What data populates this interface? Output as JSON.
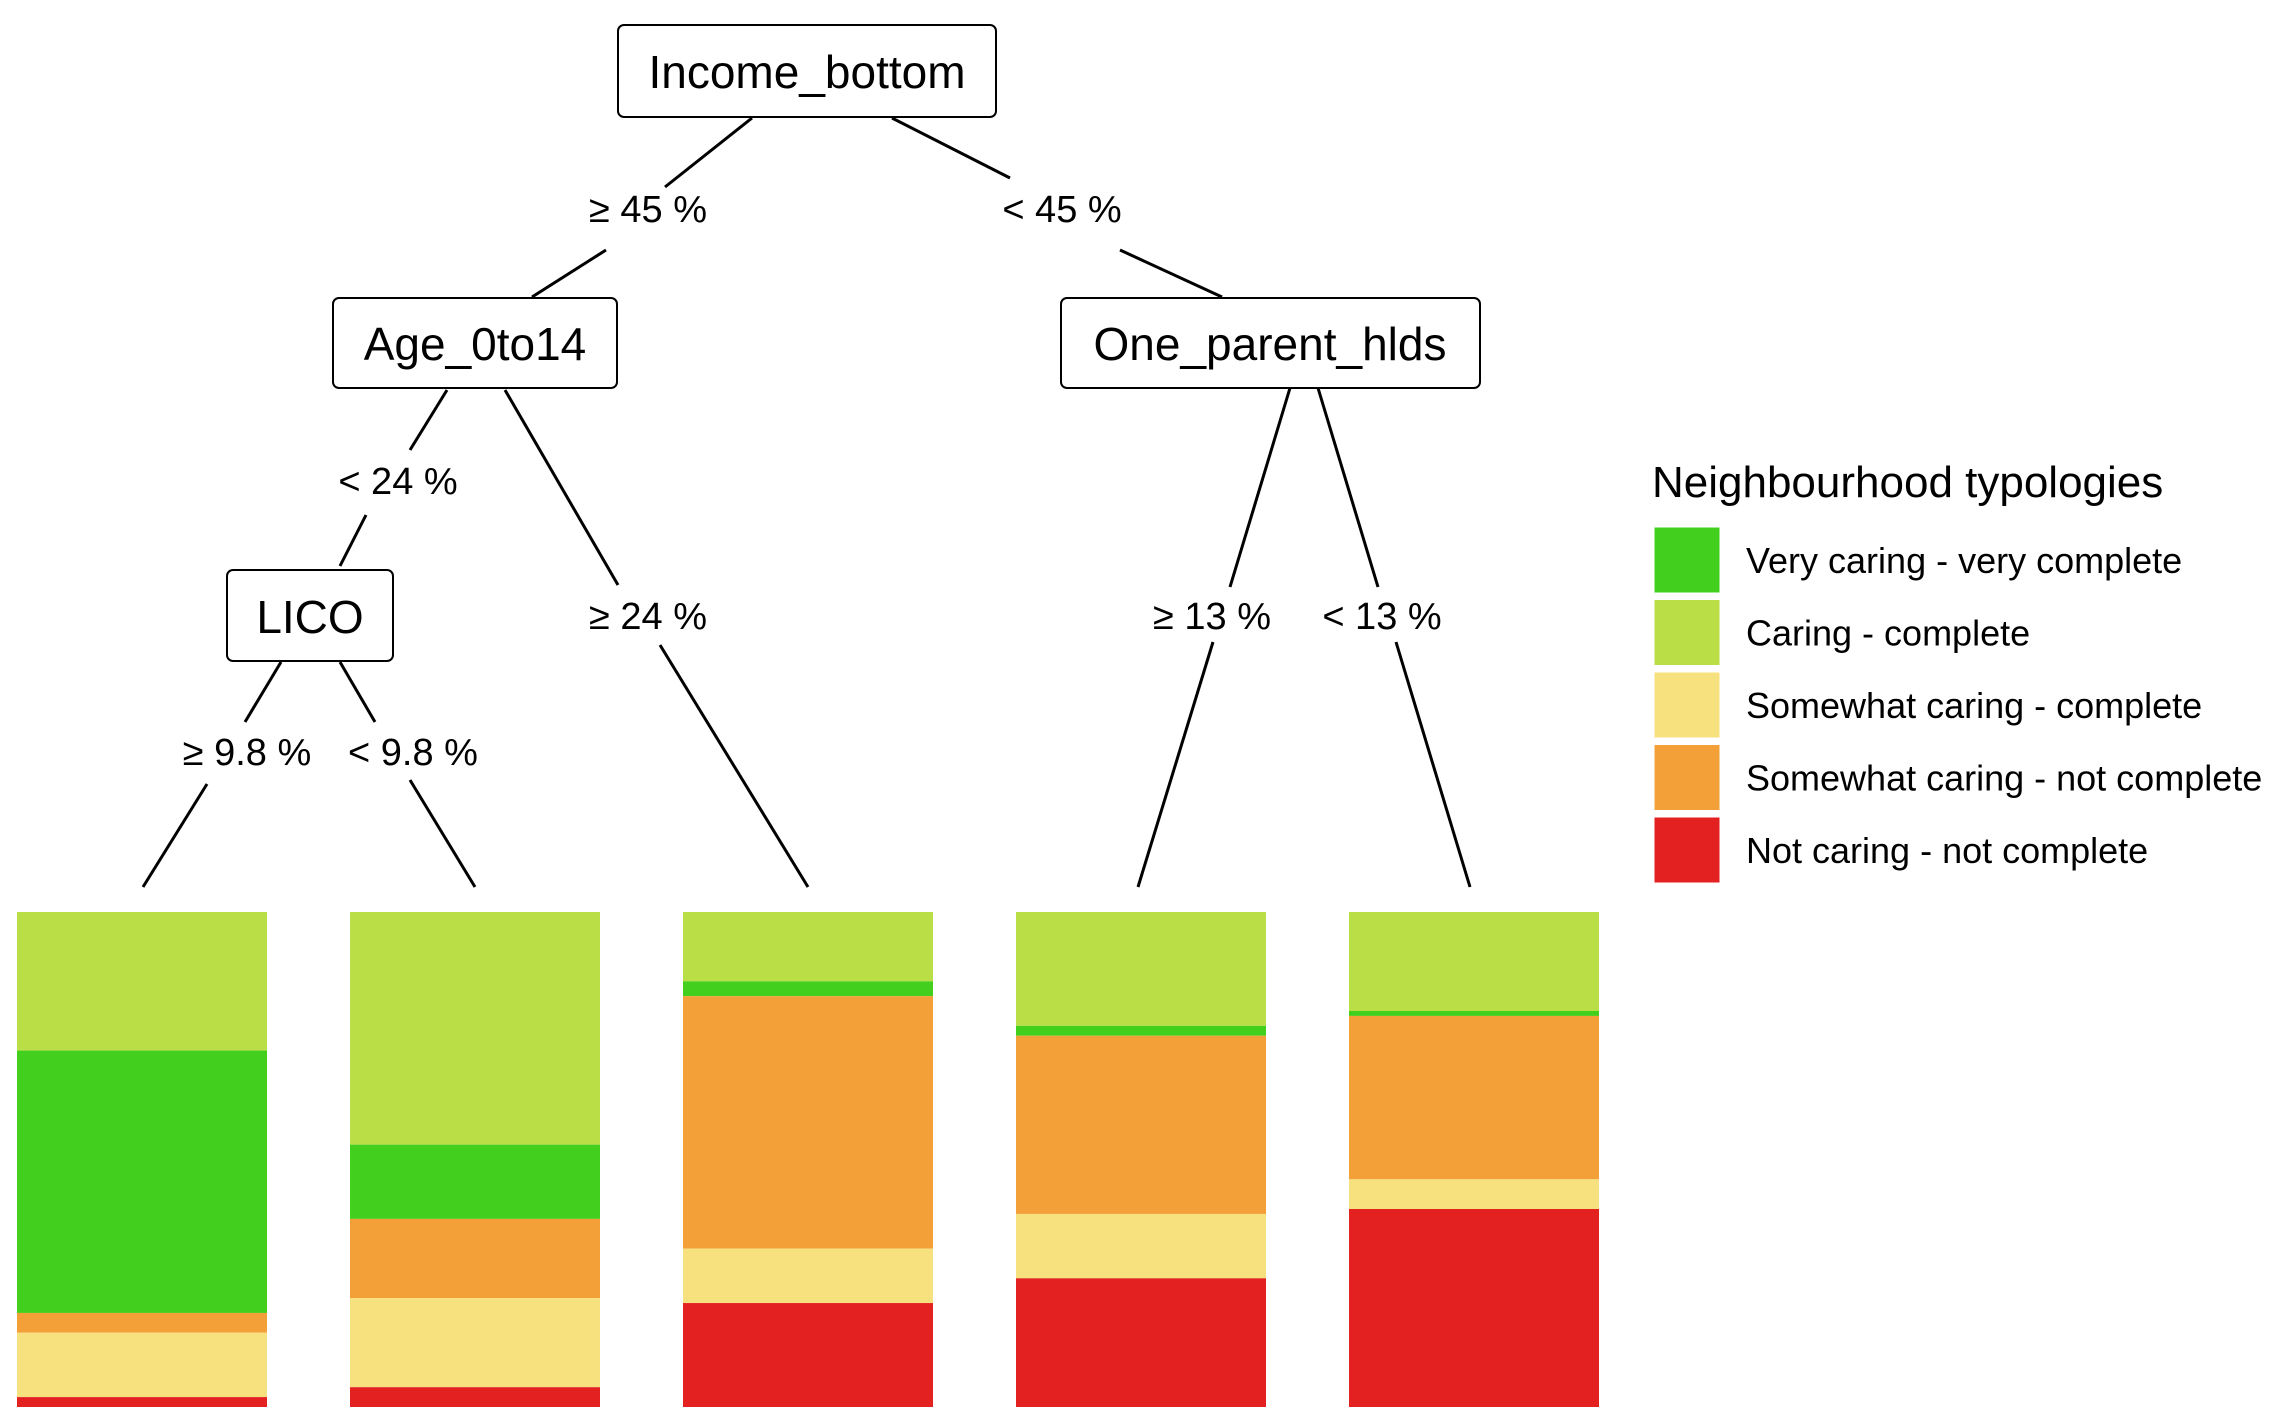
{
  "colors": {
    "very_caring_very_complete": "#43CF1E",
    "caring_complete": "#B9DE46",
    "somewhat_caring_complete": "#F7E07E",
    "somewhat_caring_not_complete": "#F2A037",
    "not_caring_not_complete": "#E42121"
  },
  "tree": {
    "nodes": {
      "root": "Income_bottom",
      "age": "Age_0to14",
      "one_parent": "One_parent_hlds",
      "lico": "LICO"
    },
    "edge_labels": {
      "root_left": "≥ 45 %",
      "root_right": "< 45 %",
      "age_left": "< 24 %",
      "age_right": "≥ 24 %",
      "lico_left": "≥ 9.8 %",
      "lico_right": "< 9.8 %",
      "op_left": "≥ 13 %",
      "op_right": "< 13 %"
    }
  },
  "legend": {
    "title": "Neighbourhood typologies",
    "items": [
      {
        "label": "Very caring - very complete",
        "color_key": "very_caring_very_complete"
      },
      {
        "label": "Caring - complete",
        "color_key": "caring_complete"
      },
      {
        "label": "Somewhat caring - complete",
        "color_key": "somewhat_caring_complete"
      },
      {
        "label": "Somewhat caring - not complete",
        "color_key": "somewhat_caring_not_complete"
      },
      {
        "label": "Not caring - not complete",
        "color_key": "not_caring_not_complete"
      }
    ]
  },
  "chart_data": {
    "type": "bar",
    "stacked": true,
    "categories": [
      "LICO ≥ 9.8 %",
      "LICO < 9.8 %",
      "Age_0to14 ≥ 24 %",
      "One_parent_hlds ≥ 13 %",
      "One_parent_hlds < 13 %"
    ],
    "ylim": [
      0,
      1
    ],
    "series_order_top_to_bottom": [
      "Caring - complete",
      "Very caring - very complete",
      "Somewhat caring - not complete",
      "Somewhat caring - complete",
      "Not caring - not complete"
    ],
    "series": [
      {
        "name": "Caring - complete",
        "color_key": "caring_complete",
        "values": [
          0.28,
          0.47,
          0.14,
          0.23,
          0.2
        ]
      },
      {
        "name": "Very caring - very complete",
        "color_key": "very_caring_very_complete",
        "values": [
          0.53,
          0.15,
          0.03,
          0.02,
          0.01
        ]
      },
      {
        "name": "Somewhat caring - not complete",
        "color_key": "somewhat_caring_not_complete",
        "values": [
          0.04,
          0.16,
          0.51,
          0.36,
          0.33
        ]
      },
      {
        "name": "Somewhat caring - complete",
        "color_key": "somewhat_caring_complete",
        "values": [
          0.13,
          0.18,
          0.11,
          0.13,
          0.06
        ]
      },
      {
        "name": "Not caring - not complete",
        "color_key": "not_caring_not_complete",
        "values": [
          0.02,
          0.04,
          0.21,
          0.26,
          0.4
        ]
      }
    ]
  }
}
